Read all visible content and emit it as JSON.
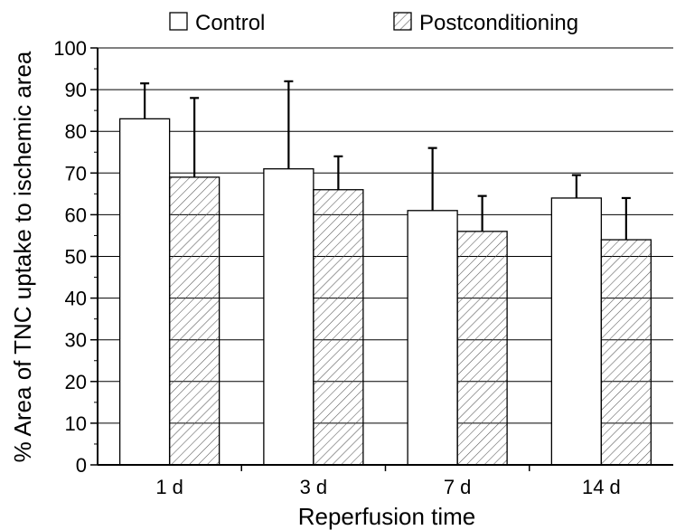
{
  "chart_data": {
    "type": "bar",
    "title": "",
    "xlabel": "Reperfusion time",
    "ylabel": "% Area of TNC uptake to ischemic area",
    "categories": [
      "1 d",
      "3 d",
      "7 d",
      "14 d"
    ],
    "ylim": [
      0,
      100
    ],
    "yticks": [
      0,
      10,
      20,
      30,
      40,
      50,
      60,
      70,
      80,
      90,
      100
    ],
    "grid": true,
    "legend_position": "top",
    "series": [
      {
        "name": "Control",
        "values": [
          83,
          71,
          61,
          64
        ],
        "error_upper": [
          91.5,
          92,
          76,
          69.5
        ],
        "fill": "#ffffff",
        "pattern": "none"
      },
      {
        "name": "Postconditioning",
        "values": [
          69,
          66,
          56,
          54
        ],
        "error_upper": [
          88,
          74,
          64.5,
          64
        ],
        "fill": "#ffffff",
        "pattern": "diagonal-hatch"
      }
    ],
    "colors": {
      "bar_stroke": "#000000",
      "hatch": "#555555",
      "grid": "#000000"
    }
  }
}
